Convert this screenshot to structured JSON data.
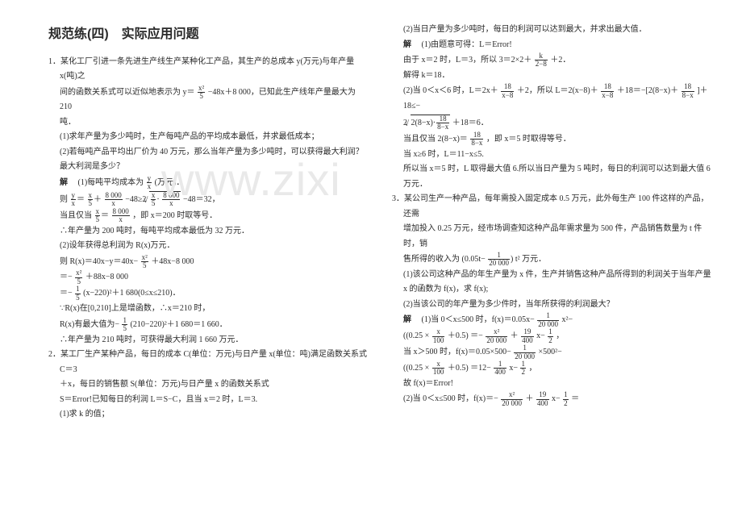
{
  "watermark": "www.zixi",
  "title": "规范练(四)　实际应用问题",
  "q1": {
    "num": "1．",
    "stem1": "某化工厂引进一条先进生产线生产某种化工产品，其生产的总成本 y(万元)与年产量 x(吨)之",
    "stem2": "间的函数关系式可以近似地表示为 y＝",
    "eq1n": "x²",
    "eq1d": "5",
    "stem3": "−48x＋8 000，已知此生产线年产量最大为 210",
    "stem4": "吨．",
    "p1": "(1)求年产量为多少吨时，生产每吨产品的平均成本最低，并求最低成本；",
    "p2": "(2)若每吨产品平均出厂价为 40 万元，那么当年产量为多少吨时，可以获得最大利润？最大利润是多少？",
    "ans": "解",
    "a1": "(1)每吨平均成本为 ",
    "a1fracn": "y",
    "a1fracd": "x",
    "a1tail": "(万元)．",
    "line2a": "则 ",
    "l2f1n": "y",
    "l2f1d": "x",
    "l2f2n": "x",
    "l2f2d": "5",
    "l2f3n": "8 000",
    "l2f3d": "x",
    "line2b": "−48≥2 ",
    "l2sqrt_in1": "x",
    "l2sqrt_in2": "5",
    "l2sqrt_in3": "8 000",
    "l2sqrt_in4": "x",
    "line2c": "−48＝32，",
    "line3a": "当且仅当 ",
    "l3f1n": "x",
    "l3f1d": "5",
    "l3f2n": "8 000",
    "l3f2d": "x",
    "line3b": "，即 x＝200 时取等号．",
    "line4": "∴年产量为 200 吨时，每吨平均成本最低为 32 万元．",
    "line5": "(2)设年获得总利润为 R(x)万元．",
    "line6a": "则 R(x)＝40x−y＝40x−",
    "l6n": "x²",
    "l6d": "5",
    "line6b": "＋48x−8 000",
    "line7a": "＝−",
    "l7n": "x²",
    "l7d": "5",
    "line7b": "＋88x−8 000",
    "line8a": "＝−",
    "l8n": "1",
    "l8d": "5",
    "line8b": "(x−220)²＋1 680(0≤x≤210)．",
    "line9": "∵R(x)在[0,210]上是增函数，∴x＝210 时，",
    "line10a": "R(x)有最大值为−",
    "l10n": "1",
    "l10d": "5",
    "line10b": "(210−220)²＋1 680＝1 660．",
    "line11": "∴年产量为 210 吨时，可获得最大利润 1 660 万元．"
  },
  "q2": {
    "num": "2．",
    "stem1": "某工厂生产某种产品，每日的成本 C(单位：万元)与日产量 x(单位：吨)满足函数关系式 C＝3",
    "stem2": "＋x，每日的销售额 S(单位：万元)与日产量 x 的函数关系式",
    "stem3": "S＝Error!已知每日的利润 L＝S−C，且当 x＝2 时，L＝3.",
    "p1": "(1)求 k 的值；",
    "p2": "(2)当日产量为多少吨时，每日的利润可以达到最大，并求出最大值．",
    "ans": "解",
    "a1": "(1)由题意可得：L＝Error!",
    "a2a": "由于 x＝2 时，L＝3，所以 3＝2×2＋",
    "a2n": "k",
    "a2d": "2−8",
    "a2b": "＋2．",
    "a3": "解得 k＝18．",
    "a4a": "(2)当 0＜x＜6 时，L＝2x＋",
    "a4n": "18",
    "a4d": "x−8",
    "a4b": "＋2，所以 L＝2(x−8)＋",
    "a4n2": "18",
    "a4d2": "x−8",
    "a4c": "＋18＝−[2(8−x)＋",
    "a4n3": "18",
    "a4d3": "8−x",
    "a4e": "]＋18≤−",
    "a5pre": "2",
    "a5sq1": "2(8−x)·",
    "a5sq2": "18",
    "a5sq3": "8−x",
    "a5tail": "＋18＝6．",
    "a6a": "当且仅当 2(8−x)＝",
    "a6n": "18",
    "a6d": "8−x",
    "a6b": "，即 x＝5 时取得等号．",
    "a7": "当 x≥6 时，L＝11−x≤5.",
    "a8": "所以当 x＝5 时，L 取得最大值 6.所以当日产量为 5 吨时，每日的利润可以达到最大值 6 万元．"
  },
  "q3": {
    "num": "3．",
    "stem1": "某公司生产一种产品，每年需投入固定成本 0.5 万元，此外每生产 100 件这样的产品，还需",
    "stem2": "增加投入 0.25 万元，经市场调查知这种产品年需求量为 500 件，产品销售数量为 t 件时，销",
    "stem3a": "售所得的收入为",
    "stem3fn": "1",
    "stem3fd": "20 000",
    "stem3b": "t²  万元．",
    "stem3pre": "0.05t−",
    "p1": "(1)该公司这种产品的年生产量为 x 件，生产并销售这种产品所得到的利润关于当年产量 x 的函数为 f(x)，求 f(x);",
    "p2": "(2)当该公司的年产量为多少件时，当年所获得的利润最大？",
    "ans": "解",
    "l1a": "(1)当 0＜x≤500 时，f(x)＝0.05x−",
    "l1n": "1",
    "l1d": "20 000",
    "l1b": "x²−",
    "l1paren": "(0.25 × ",
    "l1pn": "x",
    "l1pd": "100",
    "l1paren2": "＋0.5) ＝−",
    "l1f2n": "x²",
    "l1f2d": "20 000",
    "l1mid": "＋",
    "l1f3n": "19",
    "l1f3d": "400",
    "l1tail": "x−",
    "l1f4n": "1",
    "l1f4d": "2",
    "l1end": "，",
    "l2a": "当 x＞500 时，f(x)＝0.05×500−",
    "l2n": "1",
    "l2d": "20 000",
    "l2b": "×500²−",
    "l2paren": "(0.25 × ",
    "l2pn": "x",
    "l2pd": "100",
    "l2paren2": "＋0.5) ＝12−",
    "l2f2n": "1",
    "l2f2d": "400",
    "l2tail": "x−",
    "l2f3n": "1",
    "l2f3d": "2",
    "l2end": "，",
    "l3": "故 f(x)＝Error!",
    "l4a": "(2)当 0＜x≤500 时，f(x)＝−",
    "l4n": "x²",
    "l4d": "20 000",
    "l4b": "＋",
    "l4n2": "19",
    "l4d2": "400",
    "l4c": "x−",
    "l4n3": "1",
    "l4d3": "2",
    "l4end": "＝"
  }
}
